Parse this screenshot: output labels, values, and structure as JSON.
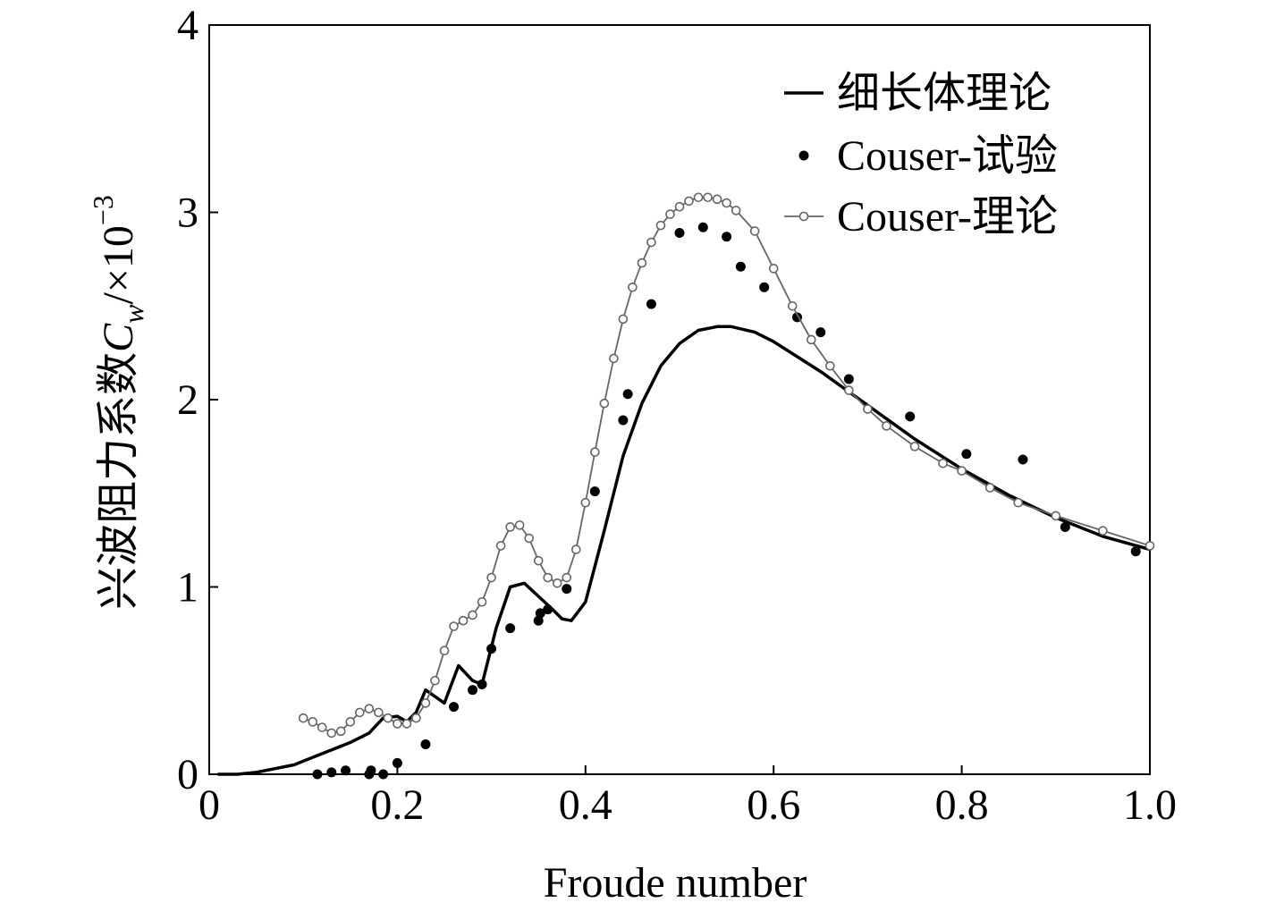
{
  "chart_data": {
    "type": "line",
    "xlabel": "Froude number",
    "ylabel_main": "兴波阻力系数",
    "ylabel_symbol": "C",
    "ylabel_subscript": "w",
    "ylabel_suffix": "/×10",
    "ylabel_exponent": "−3",
    "xlim": [
      0,
      1.0
    ],
    "ylim": [
      0,
      4
    ],
    "x_ticks": [
      0,
      0.2,
      0.4,
      0.6,
      0.8,
      1.0
    ],
    "x_tick_labels": [
      "0",
      "0.2",
      "0.4",
      "0.6",
      "0.8",
      "1.0"
    ],
    "y_ticks": [
      0,
      1,
      2,
      3,
      4
    ],
    "y_tick_labels": [
      "0",
      "1",
      "2",
      "3",
      "4"
    ],
    "grid": false,
    "legend_position": "top-right",
    "series": [
      {
        "name": "细长体理论",
        "style": "line",
        "color": "#000000",
        "x": [
          0.01,
          0.03,
          0.05,
          0.07,
          0.09,
          0.11,
          0.13,
          0.15,
          0.17,
          0.185,
          0.2,
          0.21,
          0.22,
          0.23,
          0.25,
          0.265,
          0.28,
          0.29,
          0.305,
          0.32,
          0.335,
          0.35,
          0.365,
          0.375,
          0.385,
          0.4,
          0.42,
          0.44,
          0.46,
          0.48,
          0.5,
          0.52,
          0.54,
          0.555,
          0.58,
          0.6,
          0.65,
          0.7,
          0.75,
          0.8,
          0.85,
          0.9,
          0.95,
          1.0
        ],
        "y": [
          0.0,
          0.0,
          0.01,
          0.03,
          0.05,
          0.09,
          0.13,
          0.17,
          0.22,
          0.3,
          0.31,
          0.28,
          0.33,
          0.45,
          0.38,
          0.58,
          0.5,
          0.48,
          0.78,
          1.0,
          1.02,
          0.95,
          0.88,
          0.83,
          0.82,
          0.92,
          1.3,
          1.7,
          1.98,
          2.18,
          2.3,
          2.37,
          2.39,
          2.39,
          2.36,
          2.31,
          2.15,
          1.97,
          1.79,
          1.63,
          1.49,
          1.37,
          1.27,
          1.2
        ]
      },
      {
        "name": "Couser-试验",
        "style": "scatter",
        "color": "#000000",
        "x": [
          0.115,
          0.13,
          0.145,
          0.17,
          0.172,
          0.185,
          0.2,
          0.23,
          0.26,
          0.28,
          0.29,
          0.3,
          0.32,
          0.35,
          0.352,
          0.36,
          0.38,
          0.41,
          0.44,
          0.445,
          0.47,
          0.5,
          0.525,
          0.55,
          0.565,
          0.59,
          0.625,
          0.65,
          0.68,
          0.745,
          0.805,
          0.865,
          0.91,
          0.985
        ],
        "y": [
          0.0,
          0.01,
          0.02,
          0.0,
          0.02,
          0.0,
          0.06,
          0.16,
          0.36,
          0.45,
          0.48,
          0.67,
          0.78,
          0.82,
          0.86,
          0.88,
          0.99,
          1.51,
          1.89,
          2.03,
          2.51,
          2.89,
          2.92,
          2.87,
          2.71,
          2.6,
          2.44,
          2.36,
          2.11,
          1.91,
          1.71,
          1.68,
          1.32,
          1.19
        ]
      },
      {
        "name": "Couser-理论",
        "style": "line-markers",
        "color": "#666666",
        "x": [
          0.1,
          0.11,
          0.12,
          0.13,
          0.14,
          0.15,
          0.16,
          0.17,
          0.18,
          0.19,
          0.2,
          0.21,
          0.22,
          0.23,
          0.24,
          0.25,
          0.26,
          0.27,
          0.28,
          0.29,
          0.3,
          0.31,
          0.32,
          0.33,
          0.34,
          0.35,
          0.36,
          0.37,
          0.38,
          0.39,
          0.4,
          0.41,
          0.42,
          0.43,
          0.44,
          0.45,
          0.46,
          0.47,
          0.48,
          0.49,
          0.5,
          0.51,
          0.52,
          0.53,
          0.54,
          0.55,
          0.56,
          0.58,
          0.6,
          0.62,
          0.64,
          0.66,
          0.68,
          0.7,
          0.72,
          0.75,
          0.78,
          0.8,
          0.83,
          0.86,
          0.9,
          0.95,
          1.0
        ],
        "y": [
          0.3,
          0.28,
          0.25,
          0.22,
          0.23,
          0.28,
          0.33,
          0.35,
          0.33,
          0.3,
          0.27,
          0.27,
          0.3,
          0.38,
          0.5,
          0.66,
          0.79,
          0.82,
          0.85,
          0.92,
          1.05,
          1.22,
          1.32,
          1.33,
          1.26,
          1.14,
          1.05,
          1.02,
          1.05,
          1.2,
          1.45,
          1.72,
          1.98,
          2.22,
          2.43,
          2.6,
          2.73,
          2.84,
          2.93,
          2.99,
          3.03,
          3.06,
          3.08,
          3.08,
          3.07,
          3.05,
          3.01,
          2.9,
          2.7,
          2.5,
          2.32,
          2.18,
          2.05,
          1.95,
          1.86,
          1.75,
          1.66,
          1.62,
          1.53,
          1.45,
          1.38,
          1.3,
          1.22
        ]
      }
    ]
  }
}
